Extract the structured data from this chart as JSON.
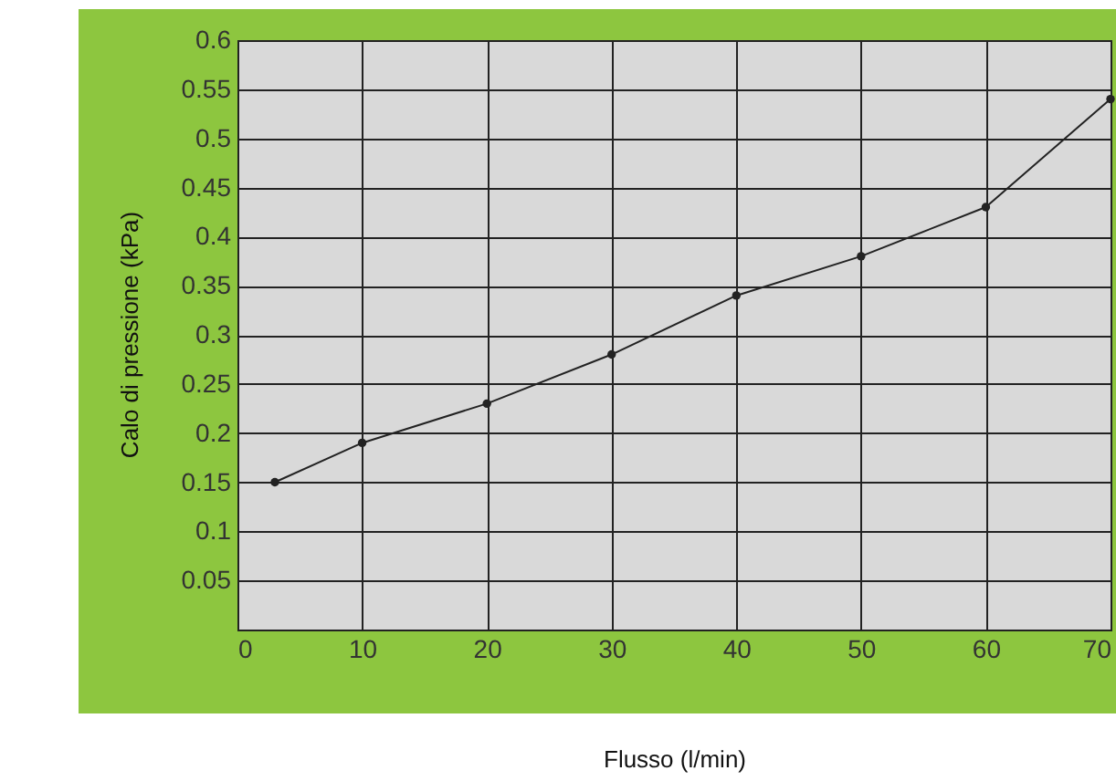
{
  "chart_data": {
    "type": "line",
    "xlabel": "Flusso (l/min)",
    "ylabel": "Calo di pressione (kPa)",
    "x": [
      3,
      10,
      20,
      30,
      40,
      50,
      60,
      70
    ],
    "series": [
      {
        "color": "#222222",
        "values": [
          0.15,
          0.19,
          0.23,
          0.28,
          0.34,
          0.38,
          0.43,
          0.54
        ]
      }
    ],
    "xlim": [
      0,
      70
    ],
    "xticks": [
      0,
      10,
      20,
      30,
      40,
      50,
      60,
      70
    ],
    "ylim": [
      0,
      0.6
    ],
    "yticks": [
      0.05,
      0.1,
      0.15,
      0.2,
      0.25,
      0.3,
      0.35,
      0.4,
      0.45,
      0.5,
      0.55,
      0.6
    ],
    "grid": true,
    "marker": "circle",
    "line_style": "solid"
  }
}
